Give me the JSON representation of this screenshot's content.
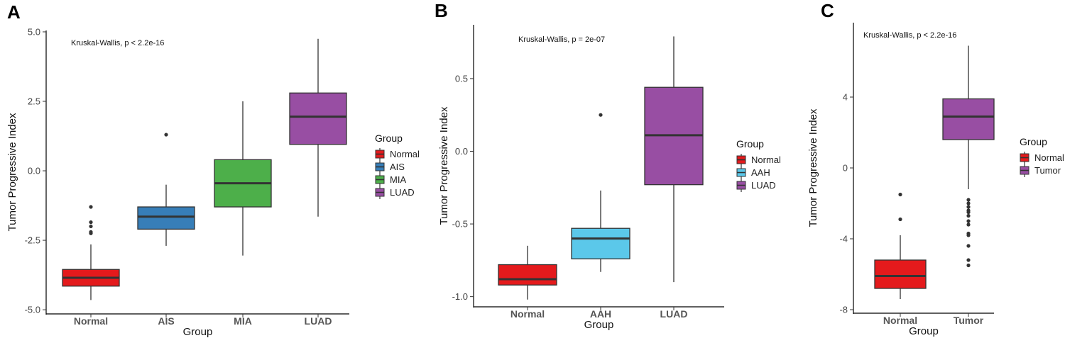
{
  "chart_data": [
    {
      "panel_label": "A",
      "type": "box",
      "title": "Kruskal-Wallis, p < 2.2e-16",
      "xlabel": "Group",
      "ylabel": "Tumor Progressive Index",
      "categories": [
        "Normal",
        "AIS",
        "MIA",
        "LUAD"
      ],
      "yticks": [
        5.0,
        2.5,
        0.0,
        -2.5,
        -5.0
      ],
      "ytick_labels": [
        "5.0",
        "2.5",
        "0.0",
        "-2.5",
        "-5.0"
      ],
      "ylim": [
        -5.15,
        5.05
      ],
      "legend_title": "Group",
      "legend_entries": [
        "Normal",
        "AIS",
        "MIA",
        "LUAD"
      ],
      "colors": [
        "#e41a1c",
        "#377eb8",
        "#4daf4a",
        "#984ea3"
      ],
      "boxes": [
        {
          "q1": -4.15,
          "median": -3.85,
          "q3": -3.55,
          "wlow": -4.65,
          "whigh": -2.65,
          "outliers": [
            -2.0,
            -1.85,
            -2.2,
            -2.25,
            -1.3
          ]
        },
        {
          "q1": -2.1,
          "median": -1.65,
          "q3": -1.3,
          "wlow": -2.7,
          "whigh": -0.5,
          "outliers": [
            1.3
          ]
        },
        {
          "q1": -1.3,
          "median": -0.45,
          "q3": 0.4,
          "wlow": -3.05,
          "whigh": 2.5,
          "outliers": []
        },
        {
          "q1": 0.95,
          "median": 1.95,
          "q3": 2.8,
          "wlow": -1.65,
          "whigh": 4.75,
          "outliers": []
        }
      ]
    },
    {
      "panel_label": "B",
      "type": "box",
      "title": "Kruskal-Wallis, p = 2e-07",
      "xlabel": "Group",
      "ylabel": "Tumor Progressive Index",
      "categories": [
        "Normal",
        "AAH",
        "LUAD"
      ],
      "yticks": [
        0.5,
        0.0,
        -0.5,
        -1.0
      ],
      "ytick_labels": [
        "0.5",
        "0.0",
        "-0.5",
        "-1.0"
      ],
      "ylim": [
        -1.07,
        0.87
      ],
      "legend_title": "Group",
      "legend_entries": [
        "Normal",
        "AAH",
        "LUAD"
      ],
      "colors": [
        "#e41a1c",
        "#5bc8ea",
        "#984ea3"
      ],
      "boxes": [
        {
          "q1": -0.92,
          "median": -0.88,
          "q3": -0.78,
          "wlow": -1.02,
          "whigh": -0.65,
          "outliers": []
        },
        {
          "q1": -0.74,
          "median": -0.6,
          "q3": -0.53,
          "wlow": -0.83,
          "whigh": -0.27,
          "outliers": [
            0.25
          ]
        },
        {
          "q1": -0.23,
          "median": 0.11,
          "q3": 0.44,
          "wlow": -0.9,
          "whigh": 0.79,
          "outliers": []
        }
      ]
    },
    {
      "panel_label": "C",
      "type": "box",
      "title": "Kruskal-Wallis, p < 2.2e-16",
      "xlabel": "Group",
      "ylabel": "Tumor Progressive Index",
      "categories": [
        "Normal",
        "Tumor"
      ],
      "yticks": [
        4,
        0,
        -4,
        -8
      ],
      "ytick_labels": [
        "4",
        "0",
        "-4",
        "-8"
      ],
      "ylim": [
        -8.2,
        8.2
      ],
      "legend_title": "Group",
      "legend_entries": [
        "Normal",
        "Tumor"
      ],
      "colors": [
        "#e41a1c",
        "#984ea3"
      ],
      "boxes": [
        {
          "q1": -6.8,
          "median": -6.1,
          "q3": -5.2,
          "wlow": -7.4,
          "whigh": -3.8,
          "outliers": [
            -1.5,
            -2.9
          ]
        },
        {
          "q1": 1.6,
          "median": 2.9,
          "q3": 3.9,
          "wlow": -1.2,
          "whigh": 6.9,
          "outliers": [
            -1.8,
            -2.0,
            -2.2,
            -2.4,
            -2.5,
            -2.7,
            -3.0,
            -3.2,
            -3.7,
            -3.8,
            -4.4,
            -5.2,
            -5.5
          ]
        }
      ]
    }
  ]
}
